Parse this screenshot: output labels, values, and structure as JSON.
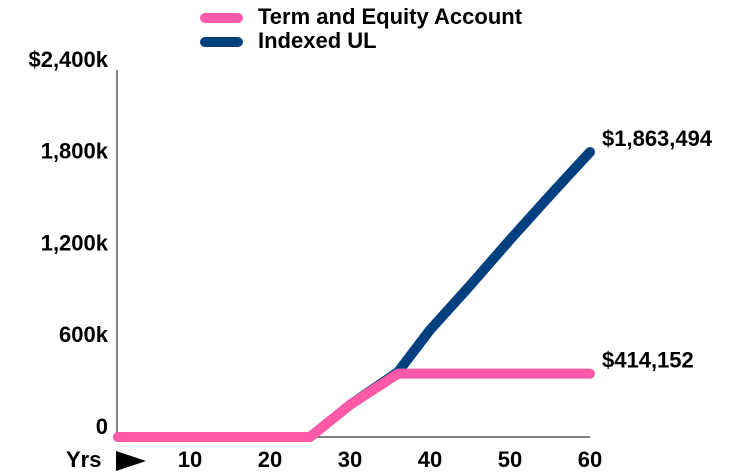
{
  "chart_data": {
    "type": "line",
    "x_label": "Yrs",
    "x": [
      1,
      25,
      30,
      36,
      40,
      45,
      50,
      55,
      60
    ],
    "series": [
      {
        "name": "Term and Equity Account",
        "color": "#ff5aa8",
        "values": [
          0,
          0,
          210,
          414.152,
          414.152,
          414.152,
          414.152,
          414.152,
          414.152
        ],
        "end_label": "$414,152"
      },
      {
        "name": "Indexed UL",
        "color": "#02407f",
        "values": [
          0,
          0,
          210,
          425,
          700,
          990,
          1290,
          1580,
          1863.494
        ],
        "end_label": "$1,863,494"
      }
    ],
    "xlim": [
      1,
      60
    ],
    "xticks": [
      10,
      20,
      30,
      40,
      50,
      60
    ],
    "ylim": [
      0,
      2400
    ],
    "yticks": [
      0,
      {
        "value": 600,
        "label": "600k"
      },
      {
        "value": 1200,
        "label": "1,200k"
      },
      {
        "value": 1800,
        "label": "1,800k"
      },
      {
        "value": 2400,
        "label": "$2,400k"
      }
    ],
    "grid": false
  }
}
